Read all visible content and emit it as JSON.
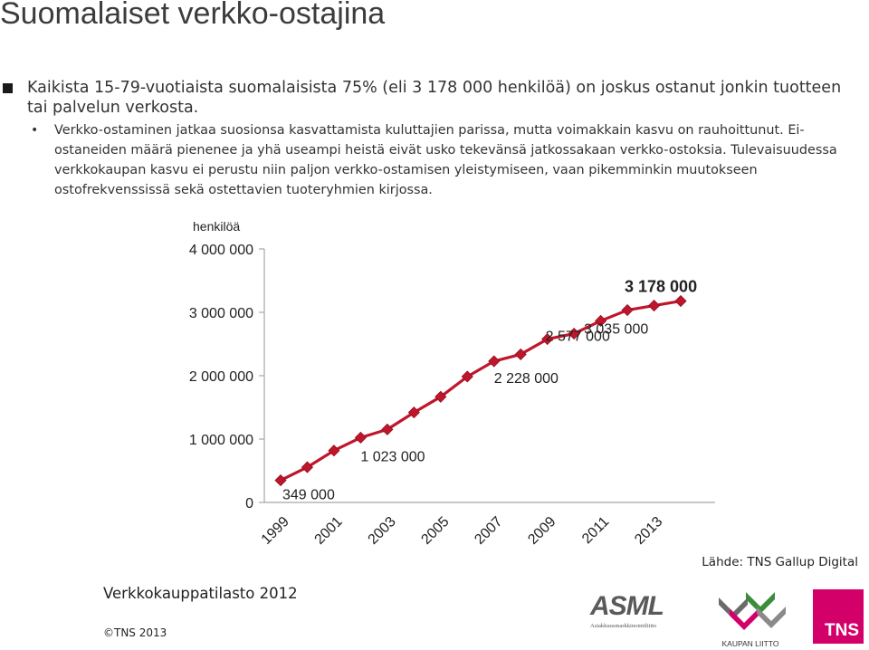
{
  "slide": {
    "title": "Suomalaiset verkko-ostajina",
    "bullet1": "Kaikista 15-79-vuotiaista suomalaisista 75% (eli 3 178 000 henkilöä) on joskus ostanut jonkin tuotteen tai palvelun verkosta.",
    "bullet2": "Verkko-ostaminen jatkaa suosionsa kasvattamista kuluttajien parissa, mutta voimakkain kasvu on rauhoittunut. Ei-ostaneiden määrä pienenee ja yhä useampi heistä eivät usko tekevänsä jatkossakaan verkko-ostoksia. Tulevaisuudessa verkkokaupan kasvu ei perustu niin paljon verkko-ostamisen yleistymiseen, vaan pikemminkin muutokseen ostofrekvenssissä sekä ostettavien tuoteryhmien kirjossa.",
    "source": "Lähde: TNS Gallup Digital",
    "footer_title": "Verkkokauppatilasto 2012",
    "copyright": "©TNS 2013"
  },
  "logos": {
    "asml_text": "ASML",
    "asml_sub": "Asiakkuusmarkkinointiliitto",
    "kaupan_liitto": "KAUPAN LIITTO",
    "tns": "TNS"
  },
  "colors": {
    "line": "#c0162c",
    "marker": "#c0162c",
    "tns_brand": "#d3006a",
    "axis": "#a6a6a6"
  },
  "chart_data": {
    "type": "line",
    "ylabel": "henkilöä",
    "ylim": [
      0,
      4000000
    ],
    "yticks": [
      0,
      1000000,
      2000000,
      3000000,
      4000000
    ],
    "ytick_labels": [
      "0",
      "1 000 000",
      "2 000 000",
      "3 000 000",
      "4 000 000"
    ],
    "x": [
      1999,
      2000,
      2001,
      2002,
      2003,
      2004,
      2005,
      2006,
      2007,
      2008,
      2009,
      2010,
      2011,
      2012,
      2013,
      2014
    ],
    "xtick_labels": [
      "1999",
      "2001",
      "2003",
      "2005",
      "2007",
      "2009",
      "2011",
      "2013"
    ],
    "series": [
      {
        "values": [
          349000,
          556000,
          818000,
          1023000,
          1152000,
          1420000,
          1667000,
          1986000,
          2228000,
          2337000,
          2577000,
          2664000,
          2865000,
          3035000,
          3106000,
          3178000
        ]
      }
    ],
    "annotations": [
      {
        "x": 1999,
        "y": 349000,
        "label": "349 000"
      },
      {
        "x": 2002,
        "y": 1023000,
        "label": "1 023 000"
      },
      {
        "x": 2007,
        "y": 2228000,
        "label": "2 228 000"
      },
      {
        "x": 2009,
        "y": 2577000,
        "label": "2 577 000"
      },
      {
        "x": 2012,
        "y": 3035000,
        "label": "3 035 000"
      },
      {
        "x": 2014,
        "y": 3178000,
        "label": "3 178 000",
        "bold": true
      }
    ],
    "grid": false,
    "legend": "none"
  }
}
